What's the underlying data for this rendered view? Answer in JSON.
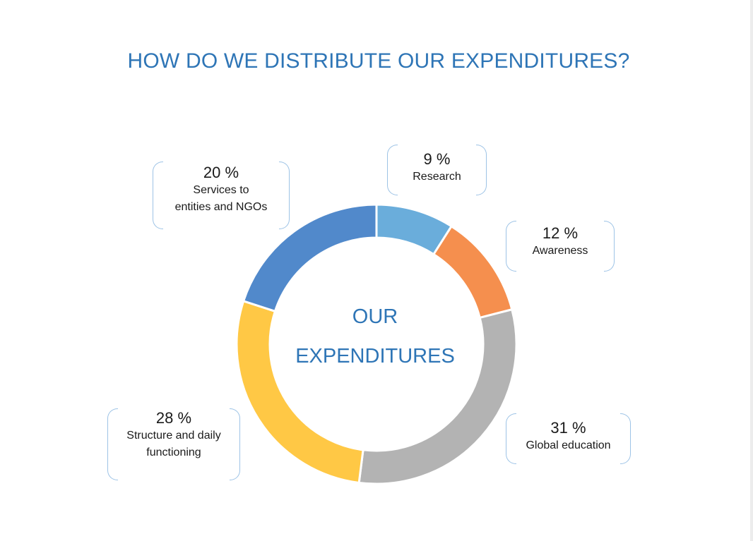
{
  "title": "HOW DO WE DISTRIBUTE OUR EXPENDITURES?",
  "center_label": {
    "line1": "OUR",
    "line2": "EXPENDITURES"
  },
  "chart_data": {
    "type": "pie",
    "variant": "donut",
    "title": "HOW DO WE DISTRIBUTE OUR EXPENDITURES?",
    "slices": [
      {
        "label": "Research",
        "value": 9,
        "display": "9 %",
        "color": "#6aaddb"
      },
      {
        "label": "Awareness",
        "value": 12,
        "display": "12 %",
        "color": "#f58f4e"
      },
      {
        "label": "Global education",
        "value": 31,
        "display": "31 %",
        "color": "#b3b3b3"
      },
      {
        "label": "Structure and daily\nfunctioning",
        "value": 28,
        "display": "28 %",
        "color": "#ffc845"
      },
      {
        "label": "Services to\nentities and NGOs",
        "value": 20,
        "display": "20 %",
        "color": "#5189cb"
      }
    ]
  },
  "colors": {
    "title": "#2e75b6",
    "bracket": "#9dc3e6"
  }
}
